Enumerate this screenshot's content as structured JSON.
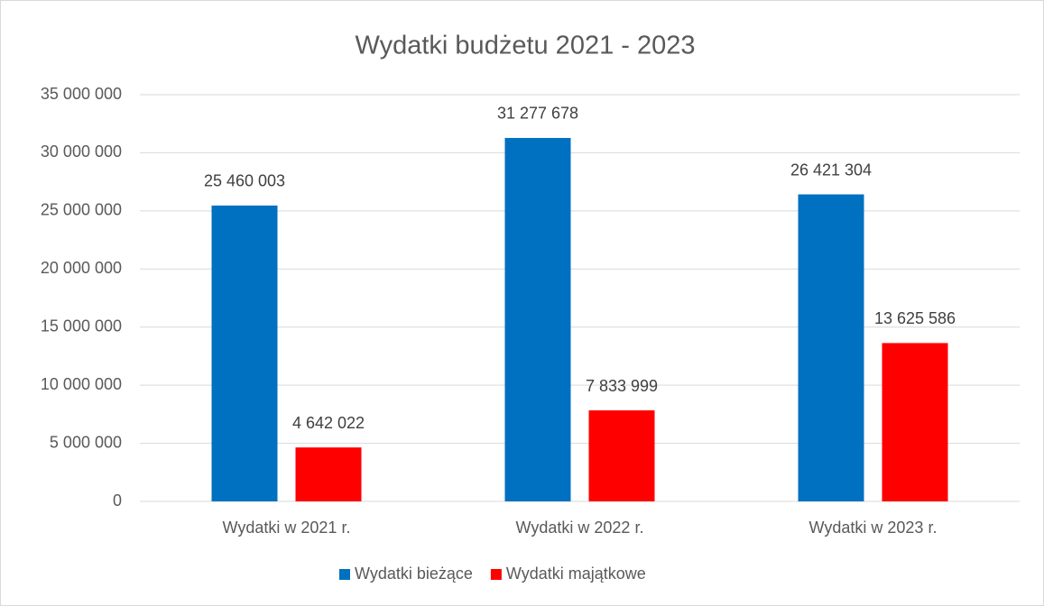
{
  "chart_data": {
    "type": "bar",
    "title": "Wydatki budżetu 2021 - 2023",
    "categories": [
      "Wydatki w 2021 r.",
      "Wydatki w 2022 r.",
      "Wydatki w 2023 r."
    ],
    "series": [
      {
        "name": "Wydatki bieżące",
        "color": "#0070c0",
        "values": [
          25460003,
          31277678,
          26421304
        ],
        "value_labels": [
          "25 460 003",
          "31 277 678",
          "26 421 304"
        ]
      },
      {
        "name": "Wydatki majątkowe",
        "color": "#ff0000",
        "values": [
          4642022,
          7833999,
          13625586
        ],
        "value_labels": [
          "4 642 022",
          "7 833 999",
          "13 625 586"
        ]
      }
    ],
    "ylim": [
      0,
      35000000
    ],
    "yticks": [
      {
        "value": 0,
        "label": "0"
      },
      {
        "value": 5000000,
        "label": "5 000 000"
      },
      {
        "value": 10000000,
        "label": "10 000 000"
      },
      {
        "value": 15000000,
        "label": "15 000 000"
      },
      {
        "value": 20000000,
        "label": "20 000 000"
      },
      {
        "value": 25000000,
        "label": "25 000 000"
      },
      {
        "value": 30000000,
        "label": "30 000 000"
      },
      {
        "value": 35000000,
        "label": "35 000 000"
      }
    ],
    "grid": true,
    "legend": "bottom"
  }
}
